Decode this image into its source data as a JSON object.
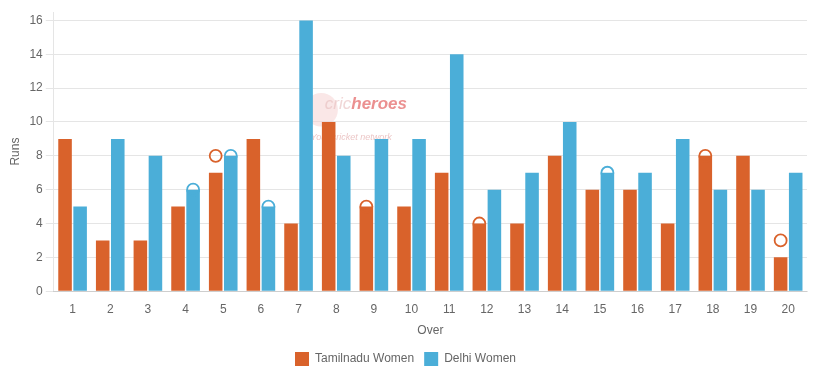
{
  "chart_data": {
    "type": "bar",
    "xlabel": "Over",
    "ylabel": "Runs",
    "categories": [
      "1",
      "2",
      "3",
      "4",
      "5",
      "6",
      "7",
      "8",
      "9",
      "10",
      "11",
      "12",
      "13",
      "14",
      "15",
      "16",
      "17",
      "18",
      "19",
      "20"
    ],
    "series": [
      {
        "name": "Tamilnadu Women",
        "color": "#d9622b",
        "marker": "circle",
        "values": [
          9,
          3,
          3,
          5,
          7,
          9,
          4,
          10,
          5,
          5,
          7,
          4,
          4,
          8,
          6,
          6,
          4,
          8,
          8,
          2
        ],
        "circles": [
          null,
          null,
          null,
          null,
          8,
          null,
          null,
          null,
          5,
          null,
          null,
          4,
          null,
          null,
          null,
          null,
          null,
          8,
          null,
          3
        ]
      },
      {
        "name": "Delhi Women",
        "color": "#4baed8",
        "marker": "circle",
        "values": [
          5,
          9,
          8,
          6,
          8,
          5,
          16,
          8,
          9,
          9,
          14,
          6,
          7,
          10,
          7,
          7,
          9,
          6,
          6,
          7
        ],
        "circles": [
          null,
          null,
          null,
          6,
          8,
          5,
          null,
          null,
          null,
          null,
          null,
          null,
          null,
          null,
          7,
          null,
          null,
          null,
          null,
          null
        ]
      }
    ],
    "annotations": [
      "cric",
      "heroes",
      "Your cricket network"
    ],
    "ylim": [
      0,
      16.5
    ],
    "yticks": [
      0,
      2,
      4,
      6,
      8,
      10,
      12,
      14,
      16
    ],
    "grid": true,
    "legend": "bottom"
  }
}
